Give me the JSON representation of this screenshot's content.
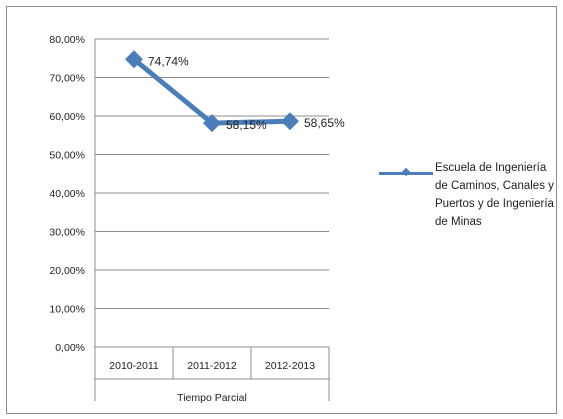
{
  "chart_data": {
    "type": "line",
    "categories": [
      "2010-2011",
      "2011-2012",
      "2012-2013"
    ],
    "category_group_label": "Tiempo Parcial",
    "series": [
      {
        "name": "Escuela de Ingeniería de Caminos, Canales y Puertos y de Ingeniería de Minas",
        "values": [
          74.74,
          58.15,
          58.65
        ],
        "labels": [
          "74,74%",
          "58,15%",
          "58,65%"
        ],
        "color": "#4a7ebb",
        "marker": "diamond"
      }
    ],
    "y_ticks": [
      "0,00%",
      "10,00%",
      "20,00%",
      "30,00%",
      "40,00%",
      "50,00%",
      "60,00%",
      "70,00%",
      "80,00%"
    ],
    "ylim": [
      0,
      80
    ],
    "y_step": 10,
    "grid": true,
    "legend_position": "right",
    "colors": {
      "gridline": "#8c8c8c",
      "axis": "#8c8c8c",
      "text": "#222222"
    }
  }
}
